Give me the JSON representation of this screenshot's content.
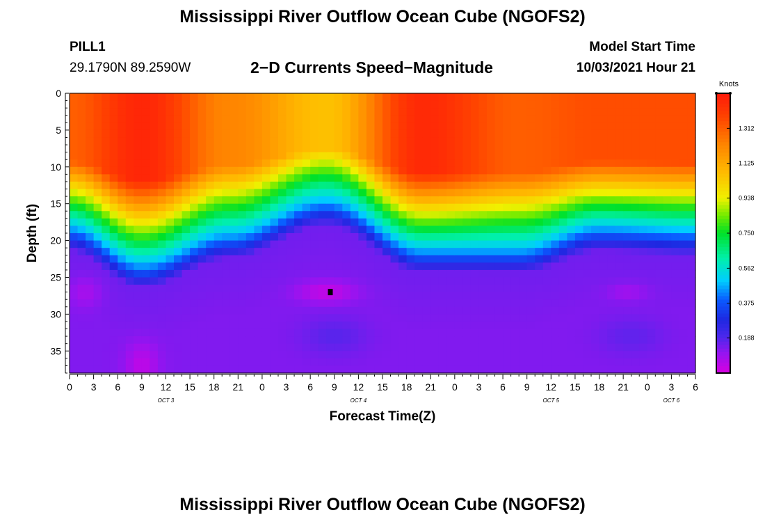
{
  "page": {
    "title_top": "Mississippi River Outflow Ocean Cube (NGOFS2)",
    "title_bottom": "Mississippi River Outflow Ocean Cube (NGOFS2)",
    "station_id": "PILL1",
    "station_coords": "29.1790N  89.2590W",
    "plot_title": "2−D Currents Speed−Magnitude",
    "model_start_label": "Model Start Time",
    "model_start_value": "10/03/2021 Hour 21"
  },
  "chart_data": {
    "type": "heatmap",
    "title": "2-D Currents Speed-Magnitude",
    "xlabel": "Forecast Time(Z)",
    "ylabel": "Depth (ft)",
    "xlim_hours": [
      0,
      78
    ],
    "ylim": [
      38,
      0
    ],
    "x_tick_labels": [
      "0",
      "3",
      "6",
      "9",
      "12",
      "15",
      "18",
      "21",
      "0",
      "3",
      "6",
      "9",
      "12",
      "15",
      "18",
      "21",
      "0",
      "3",
      "6",
      "9",
      "12",
      "15",
      "18",
      "21",
      "0",
      "3",
      "6"
    ],
    "x_tick_hours": [
      0,
      3,
      6,
      9,
      12,
      15,
      18,
      21,
      24,
      27,
      30,
      33,
      36,
      39,
      42,
      45,
      48,
      51,
      54,
      57,
      60,
      63,
      66,
      69,
      72,
      75,
      78
    ],
    "date_labels": [
      {
        "text": "OCT 3",
        "hour": 12
      },
      {
        "text": "OCT 4",
        "hour": 36
      },
      {
        "text": "OCT 5",
        "hour": 60
      },
      {
        "text": "OCT 6",
        "hour": 75
      }
    ],
    "y_ticks": [
      0,
      5,
      10,
      15,
      20,
      25,
      30,
      35
    ],
    "colorbar": {
      "unit": "Knots",
      "range": [
        0.0,
        1.5
      ],
      "tick_values": [
        1.312,
        1.125,
        0.938,
        0.75,
        0.562,
        0.375,
        0.188
      ],
      "tick_labels": [
        "1.312",
        "1.125",
        "0.938",
        "0.750",
        "0.562",
        "0.375",
        "0.188"
      ]
    },
    "marker": {
      "hour": 32.5,
      "depth": 27
    },
    "surface_speed_profile": {
      "hours": [
        0,
        9,
        20,
        32,
        44,
        56,
        66,
        78
      ],
      "surface_knots": [
        1.31,
        1.46,
        1.22,
        1.06,
        1.45,
        1.31,
        1.35,
        1.35
      ]
    },
    "thermocline_depth_profile": {
      "hours": [
        0,
        9,
        20,
        32,
        44,
        56,
        66,
        78
      ],
      "depth_ft": [
        18.5,
        23.5,
        19.5,
        15,
        21.5,
        21.5,
        18.5,
        19
      ]
    }
  }
}
